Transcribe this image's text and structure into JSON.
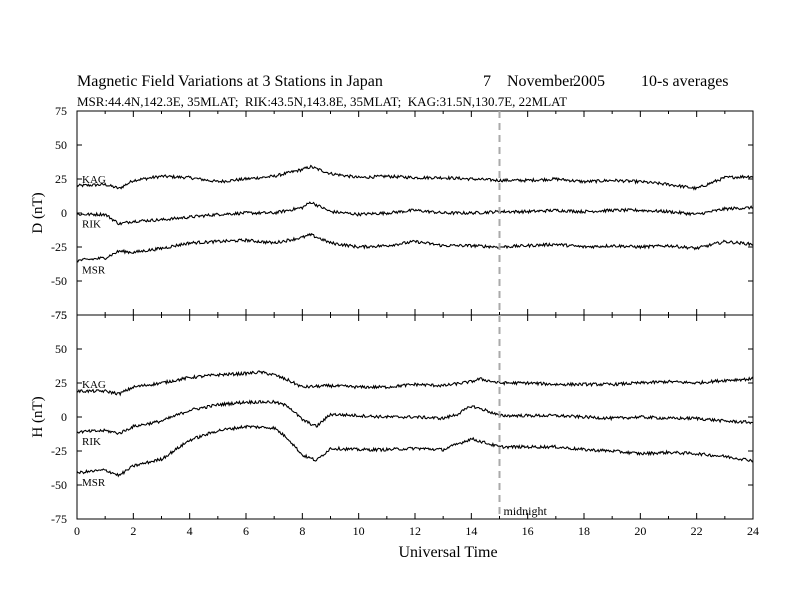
{
  "header": {
    "title": "Magnetic Field Variations at 3 Stations in Japan",
    "day": "7",
    "month": "November",
    "year": "2005",
    "averaging": "10-s averages",
    "subtitle": "MSR:44.4N,142.3E, 35MLAT;  RIK:43.5N,143.8E, 35MLAT;  KAG:31.5N,130.7E, 22MLAT"
  },
  "chart_data": [
    {
      "type": "line",
      "panel": "D",
      "ylabel": "D (nT)",
      "ylim": [
        -75,
        75
      ],
      "yticks": [
        75,
        50,
        25,
        0,
        -25,
        -50,
        -75
      ],
      "xlim": [
        0,
        24
      ],
      "series": [
        {
          "name": "KAG",
          "x": [
            0,
            1,
            1.5,
            2,
            3,
            4,
            5,
            6,
            7,
            8,
            8.3,
            9,
            10,
            11,
            12,
            13,
            14,
            15,
            16,
            17,
            18,
            19,
            20,
            21,
            22,
            23,
            24
          ],
          "values": [
            20,
            21,
            18,
            24,
            27,
            26,
            23,
            25,
            27,
            32,
            34,
            29,
            26,
            27,
            26,
            26,
            25,
            24,
            24,
            25,
            23,
            24,
            23,
            21,
            18,
            26,
            27
          ]
        },
        {
          "name": "RIK",
          "x": [
            0,
            1,
            1.5,
            2,
            3,
            4,
            5,
            6,
            7,
            8,
            8.3,
            9,
            10,
            11,
            12,
            13,
            14,
            15,
            16,
            17,
            18,
            19,
            20,
            21,
            22,
            23,
            24
          ],
          "values": [
            -1,
            -1,
            -8,
            -6,
            -5,
            -3,
            -1,
            0,
            0,
            4,
            8,
            1,
            -1,
            0,
            2,
            0,
            0,
            1,
            1,
            2,
            1,
            2,
            2,
            1,
            -1,
            3,
            4
          ]
        },
        {
          "name": "MSR",
          "x": [
            0,
            1,
            1.5,
            2,
            3,
            4,
            5,
            6,
            7,
            8,
            8.3,
            9,
            10,
            11,
            12,
            13,
            14,
            15,
            16,
            17,
            18,
            19,
            20,
            21,
            22,
            23,
            24
          ],
          "values": [
            -35,
            -33,
            -28,
            -29,
            -26,
            -22,
            -21,
            -20,
            -22,
            -18,
            -16,
            -22,
            -25,
            -24,
            -21,
            -24,
            -24,
            -25,
            -24,
            -23,
            -25,
            -24,
            -25,
            -24,
            -26,
            -21,
            -23
          ]
        }
      ]
    },
    {
      "type": "line",
      "panel": "H",
      "ylabel": "H (nT)",
      "ylim": [
        -75,
        75
      ],
      "yticks": [
        75,
        50,
        25,
        0,
        -25,
        -50,
        -75
      ],
      "xlim": [
        0,
        24
      ],
      "xticks": [
        0,
        2,
        4,
        6,
        8,
        10,
        12,
        14,
        16,
        18,
        20,
        22,
        24
      ],
      "xlabel": "Universal Time",
      "series": [
        {
          "name": "KAG",
          "x": [
            0,
            1,
            1.5,
            2,
            3,
            4,
            5,
            6,
            6.5,
            7,
            7.5,
            8,
            9,
            10,
            11,
            12,
            13,
            14,
            14.3,
            15,
            16,
            17,
            18,
            19,
            20,
            21,
            22,
            23,
            24
          ],
          "values": [
            19,
            19,
            17,
            22,
            25,
            29,
            31,
            32,
            33,
            31,
            27,
            22,
            23,
            22,
            22,
            24,
            23,
            26,
            28,
            25,
            25,
            24,
            24,
            24,
            25,
            26,
            25,
            27,
            28
          ]
        },
        {
          "name": "RIK",
          "x": [
            0,
            1,
            1.5,
            2,
            3,
            4,
            5,
            6,
            7,
            7.5,
            8,
            8.5,
            9,
            10,
            11,
            12,
            13,
            13.5,
            14,
            14.5,
            15,
            16,
            17,
            18,
            19,
            20,
            21,
            22,
            23,
            24
          ],
          "values": [
            -11,
            -10,
            -12,
            -7,
            -3,
            5,
            9,
            11,
            11,
            8,
            -2,
            -7,
            2,
            1,
            0,
            0,
            -1,
            2,
            8,
            5,
            1,
            1,
            1,
            0,
            -1,
            0,
            -1,
            -1,
            -3,
            -4
          ]
        },
        {
          "name": "MSR",
          "x": [
            0,
            1,
            1.5,
            2,
            3,
            4,
            5,
            6,
            7,
            7.5,
            8,
            8.5,
            9,
            10,
            11,
            12,
            13,
            13.5,
            14,
            14.5,
            15,
            16,
            17,
            18,
            19,
            20,
            21,
            22,
            23,
            24
          ],
          "values": [
            -41,
            -39,
            -43,
            -36,
            -31,
            -17,
            -10,
            -7,
            -8,
            -16,
            -28,
            -32,
            -23,
            -24,
            -24,
            -23,
            -24,
            -20,
            -16,
            -19,
            -22,
            -22,
            -22,
            -24,
            -25,
            -27,
            -26,
            -27,
            -29,
            -32
          ]
        }
      ]
    }
  ],
  "annotation": {
    "label": "midnight",
    "x": 15
  }
}
